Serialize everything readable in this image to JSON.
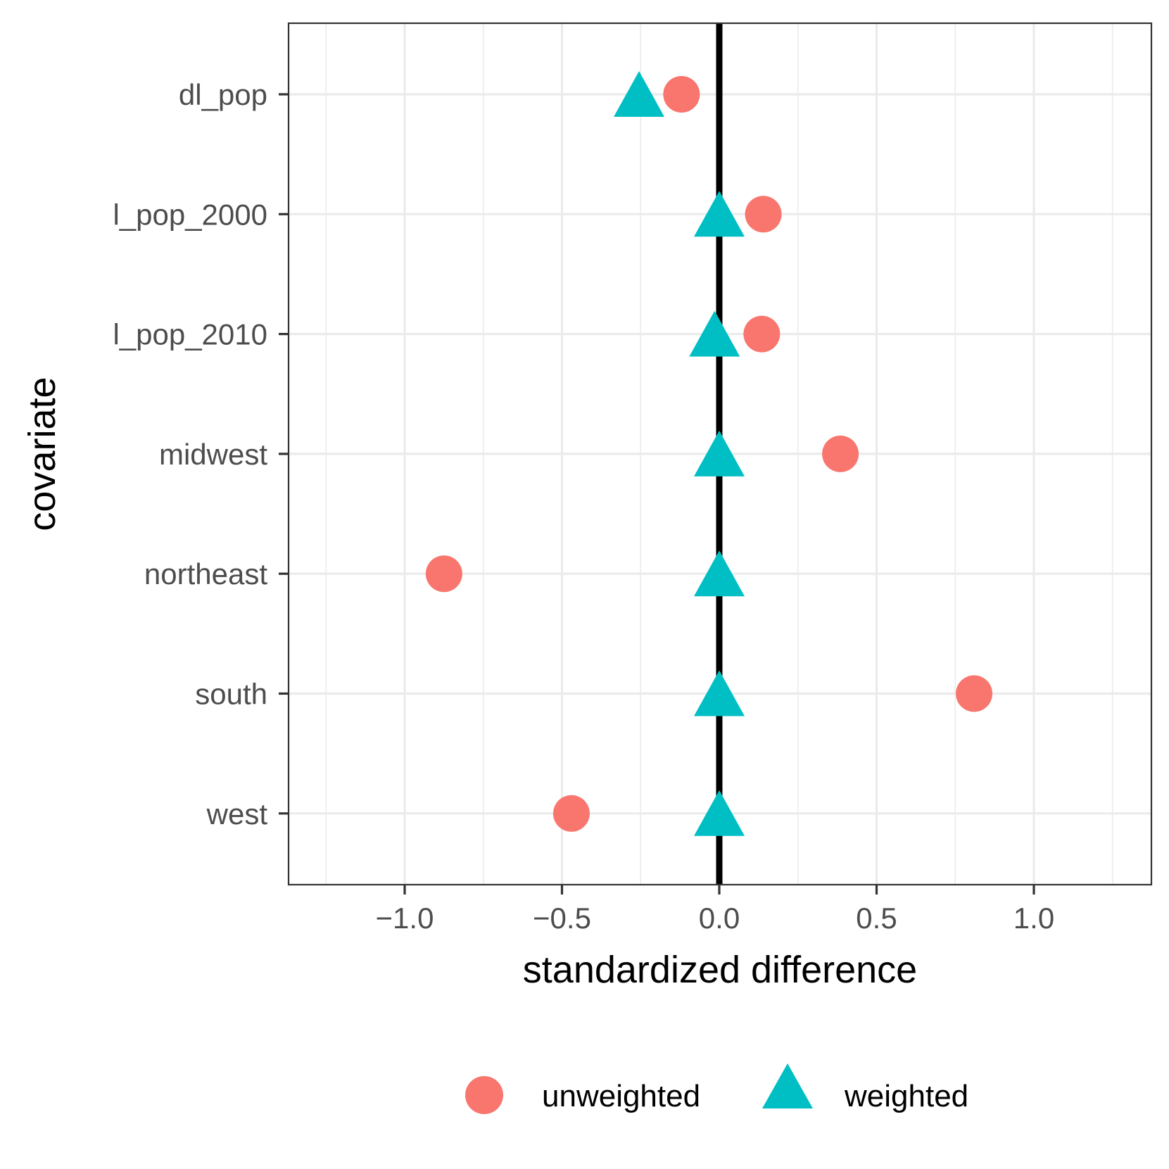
{
  "chart_data": {
    "type": "scatter",
    "title": "",
    "xlabel": "standardized difference",
    "ylabel": "covariate",
    "xlim": [
      -1.37,
      1.37
    ],
    "x_ticks": [
      -1.0,
      -0.5,
      0.0,
      0.5,
      1.0
    ],
    "x_tick_labels": [
      "−1.0",
      "−0.5",
      "0.0",
      "0.5",
      "1.0"
    ],
    "grid": true,
    "reference_line": 0,
    "categories": [
      "dl_pop",
      "l_pop_2000",
      "l_pop_2010",
      "midwest",
      "northeast",
      "south",
      "west"
    ],
    "series": [
      {
        "name": "unweighted",
        "shape": "circle",
        "color": "#F8766D",
        "values": [
          -0.12,
          0.14,
          0.135,
          0.385,
          -0.875,
          0.81,
          -0.47
        ]
      },
      {
        "name": "weighted",
        "shape": "triangle",
        "color": "#00BFC4",
        "values": [
          -0.255,
          0.0,
          -0.015,
          0.0,
          0.0,
          0.0,
          0.0
        ]
      }
    ],
    "legend_position": "bottom"
  }
}
